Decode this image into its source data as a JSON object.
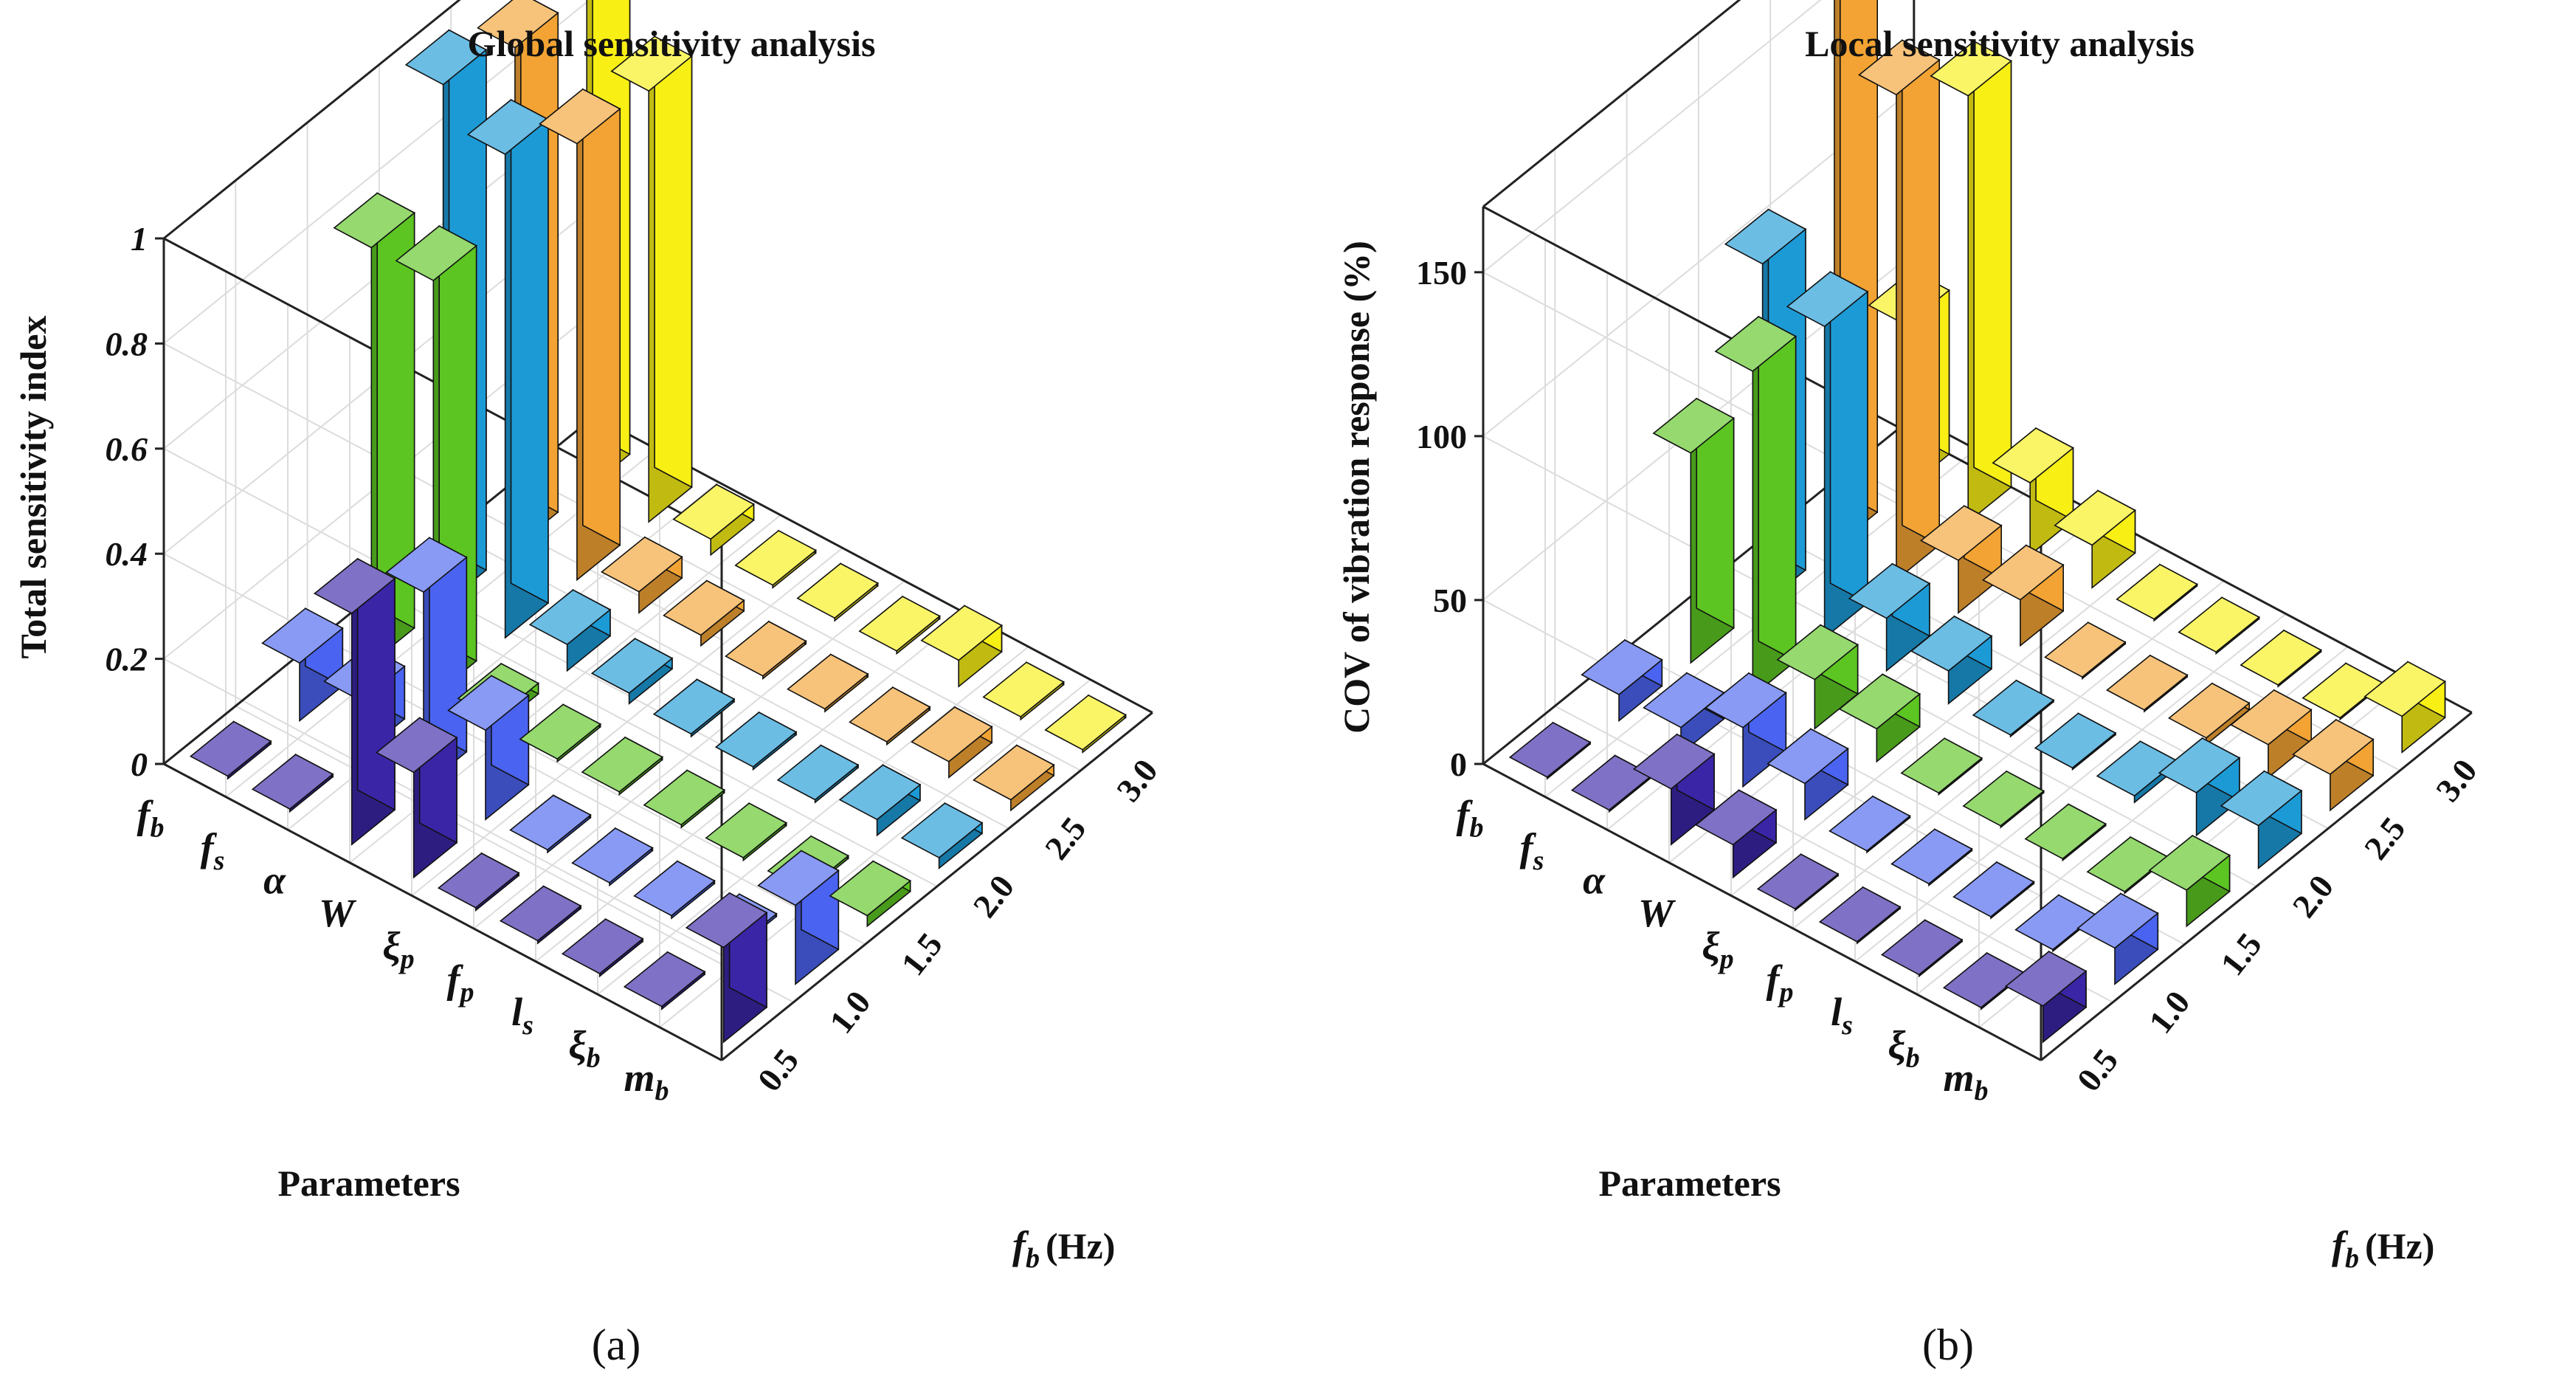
{
  "figure": {
    "panel_a_label": "(a)",
    "panel_b_label": "(b)"
  },
  "colors": {
    "series": [
      "#3a25a6",
      "#4a63f0",
      "#5cc522",
      "#1c9ad6",
      "#f2a333",
      "#f8ef14"
    ],
    "grid": "#dcdcdc",
    "axis": "#222222"
  },
  "chart_data": [
    {
      "type": "bar3d",
      "title": "Global sensitivity analysis",
      "zlabel": "Total sensitivity index",
      "param_axis_title": "Parameters",
      "freq_axis_title": {
        "main": "f",
        "sub": "b",
        "unit": "(Hz)"
      },
      "parameters": [
        {
          "main": "f",
          "sub": "b"
        },
        {
          "main": "f",
          "sub": "s"
        },
        {
          "main": "α",
          "sub": ""
        },
        {
          "main": "W",
          "sub": ""
        },
        {
          "main": "ξ",
          "sub": "p"
        },
        {
          "main": "f",
          "sub": "p"
        },
        {
          "main": "l",
          "sub": "s"
        },
        {
          "main": "ξ",
          "sub": "b"
        },
        {
          "main": "m",
          "sub": "b"
        }
      ],
      "frequencies": [
        "0.5",
        "1.0",
        "1.5",
        "2.0",
        "2.5",
        "3.0"
      ],
      "zlim": [
        0,
        1
      ],
      "zticks": [
        "0",
        "0.2",
        "0.4",
        "0.6",
        "0.8",
        "1"
      ],
      "zvalues": [
        0,
        0.2,
        0.4,
        0.6,
        0.8,
        1
      ],
      "values": [
        [
          0.005,
          0.11,
          0.79,
          0.99,
          0.95,
          1.1
        ],
        [
          0.005,
          0.1,
          0.79,
          0.92,
          0.83,
          0.82
        ],
        [
          0.44,
          0.37,
          0.02,
          0.05,
          0.04,
          0.03
        ],
        [
          0.2,
          0.17,
          0.005,
          0.02,
          0.02,
          0.005
        ],
        [
          0.005,
          0.005,
          0.005,
          0.005,
          0.005,
          0.005
        ],
        [
          0.005,
          0.005,
          0.005,
          0.005,
          0.005,
          0.005
        ],
        [
          0.005,
          0.005,
          0.005,
          0.005,
          0.005,
          0.05
        ],
        [
          0.005,
          0.005,
          0.005,
          0.03,
          0.03,
          0.005
        ],
        [
          0.18,
          0.15,
          0.02,
          0.02,
          0.02,
          0.005
        ]
      ]
    },
    {
      "type": "bar3d",
      "title": "Local sensitivity analysis",
      "zlabel": "COV of vibration response (%)",
      "param_axis_title": "Parameters",
      "freq_axis_title": {
        "main": "f",
        "sub": "b",
        "unit": "(Hz)"
      },
      "parameters": [
        {
          "main": "f",
          "sub": "b"
        },
        {
          "main": "f",
          "sub": "s"
        },
        {
          "main": "α",
          "sub": ""
        },
        {
          "main": "W",
          "sub": ""
        },
        {
          "main": "ξ",
          "sub": "p"
        },
        {
          "main": "f",
          "sub": "p"
        },
        {
          "main": "l",
          "sub": "s"
        },
        {
          "main": "ξ",
          "sub": "b"
        },
        {
          "main": "m",
          "sub": "b"
        }
      ],
      "frequencies": [
        "0.5",
        "1.0",
        "1.5",
        "2.0",
        "2.5",
        "3.0"
      ],
      "zlim": [
        0,
        170
      ],
      "zticks": [
        "0",
        "50",
        "100",
        "150"
      ],
      "zvalues": [
        0,
        50,
        100,
        150
      ],
      "values": [
        [
          0.5,
          8,
          64,
          104,
          183,
          50
        ],
        [
          0.5,
          8,
          99,
          95,
          148,
          130
        ],
        [
          17,
          18,
          15,
          16,
          16,
          22
        ],
        [
          10,
          11,
          10,
          10,
          14,
          13
        ],
        [
          0.5,
          0.5,
          0.5,
          0.5,
          0.5,
          0.5
        ],
        [
          0.5,
          0.5,
          0.5,
          0.5,
          0.5,
          0.5
        ],
        [
          0.5,
          0.5,
          0.5,
          2,
          2,
          0.5
        ],
        [
          0.5,
          0.5,
          0.5,
          13,
          10,
          0.5
        ],
        [
          11,
          11,
          11,
          13,
          11,
          11
        ]
      ]
    }
  ]
}
